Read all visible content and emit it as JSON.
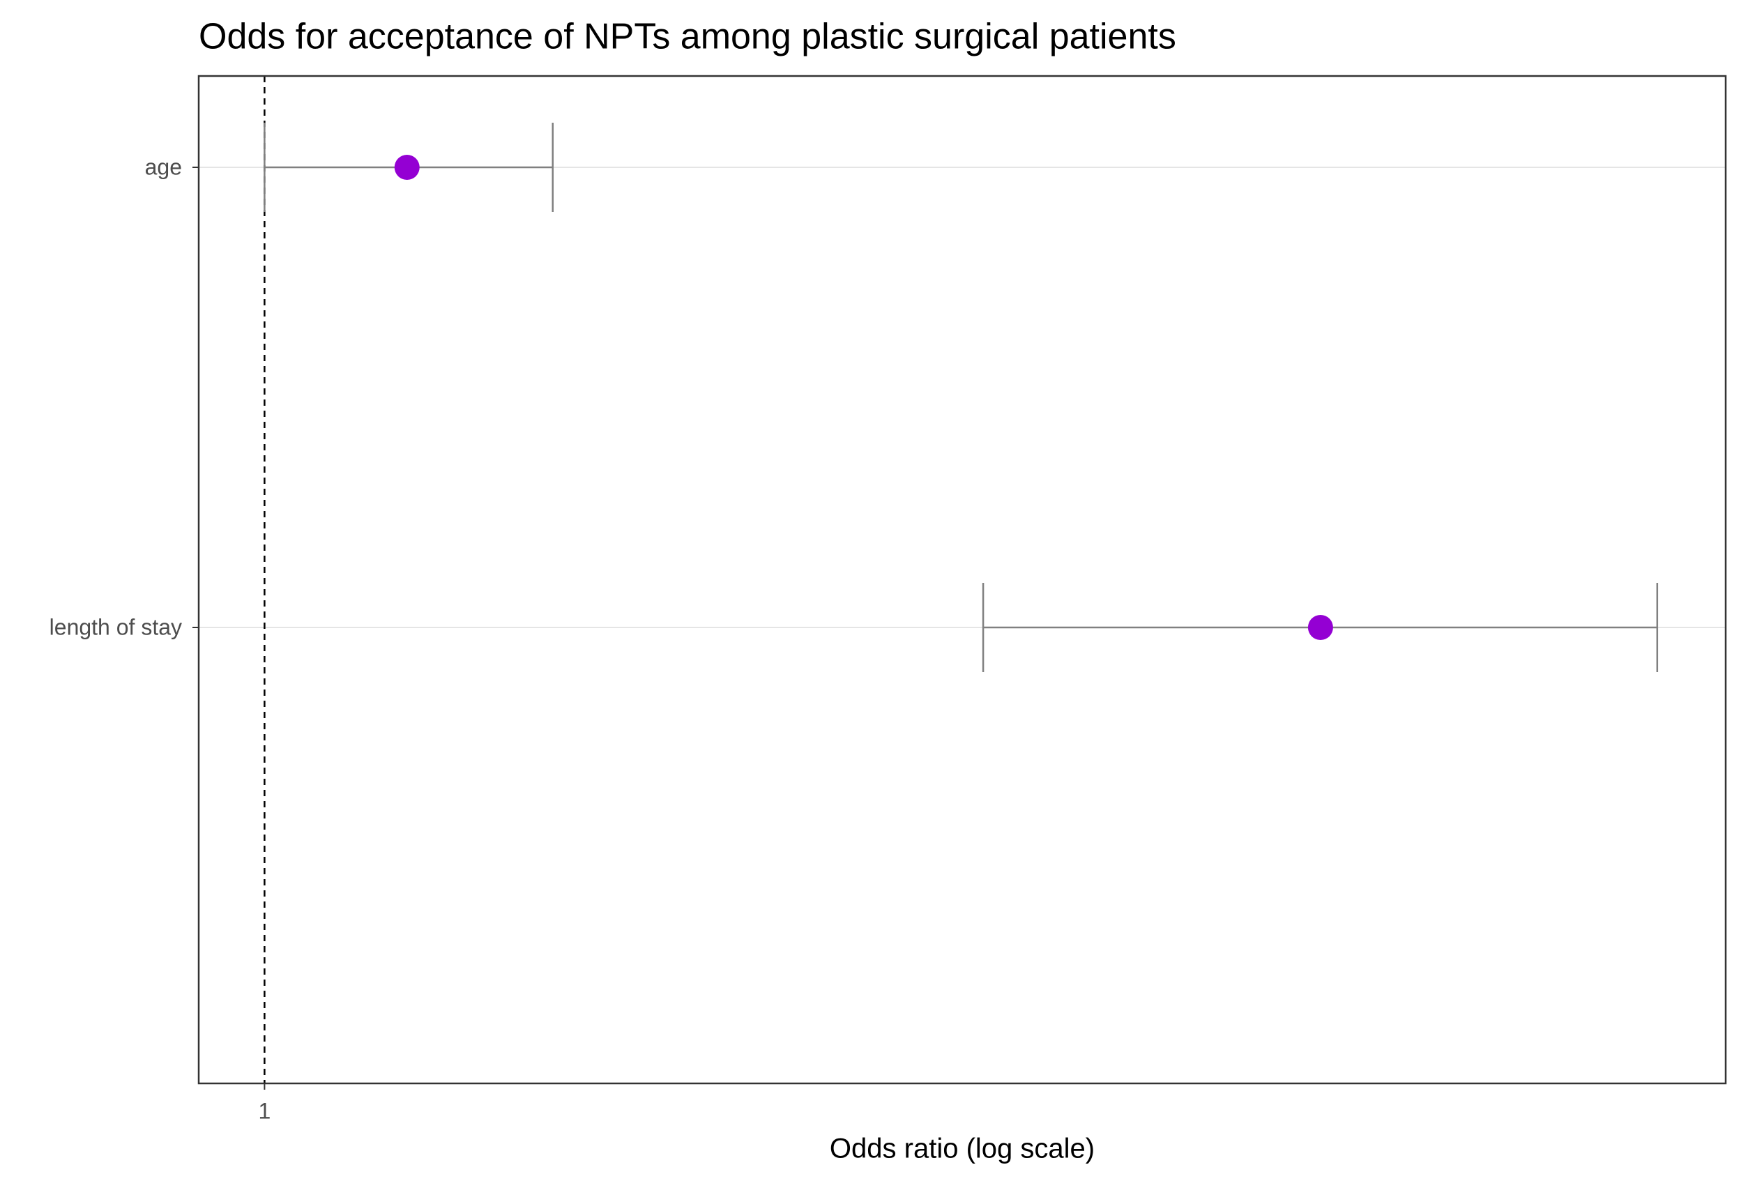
{
  "chart_data": {
    "type": "forest",
    "title": "Odds for acceptance of NPTs among plastic surgical patients",
    "x_label": "Odds ratio (log scale)",
    "categories": [
      "age",
      "length of stay"
    ],
    "series": [
      {
        "color": "#9400d3",
        "values": [
          1.022,
          1.175
        ],
        "lower": [
          1.0,
          1.116
        ],
        "upper": [
          1.045,
          1.237
        ],
        "errorbar_color": "#808080"
      }
    ],
    "xscale": "log",
    "xlim": [
      0.99,
      1.25
    ],
    "xticks": [
      1
    ],
    "reference_line": 1,
    "grid": true
  }
}
